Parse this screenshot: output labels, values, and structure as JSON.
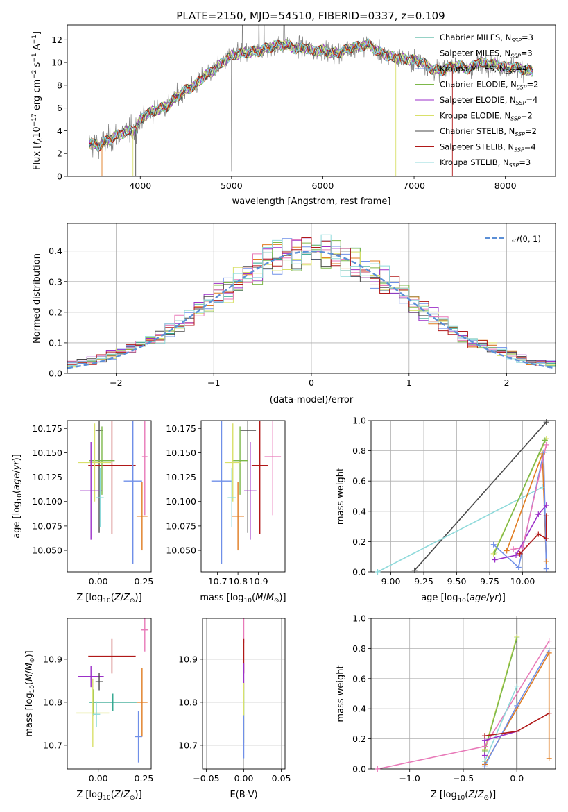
{
  "figure": {
    "title": "PLATE=2150, MJD=54510, FIBERID=0337, z=0.109"
  },
  "colors": {
    "Chabrier MILES": "#2ca58d",
    "Salpeter MILES": "#e07b1f",
    "Kroupa MILES": "#6f8fe8",
    "Chabrier ELODIE": "#7db84a",
    "Salpeter ELODIE": "#9b2fc8",
    "Kroupa ELODIE": "#d9e06a",
    "Chabrier STELIB": "#4a4a4a",
    "Salpeter STELIB": "#b01818",
    "Kroupa STELIB": "#8fdadb",
    "pink": "#e879b8",
    "normal": "#5b8fd6",
    "data": "#808080"
  },
  "chart_data": [
    {
      "id": "spectrum",
      "type": "line",
      "xlabel": "wavelength [Angstrom, rest frame]",
      "ylabel": "Flux [f_λ10^-17 erg cm^-2 s^-1 A^-1]",
      "xlim": [
        3200,
        8550
      ],
      "ylim": [
        0,
        13.3
      ],
      "xticks": [
        4000,
        5000,
        6000,
        7000,
        8000
      ],
      "yticks": [
        0,
        2,
        4,
        6,
        8,
        10,
        12
      ],
      "legend_position": "right",
      "legend": [
        {
          "base": "Chabrier MILES, N",
          "sub": "SSP",
          "tail": "=3"
        },
        {
          "base": "Salpeter MILES, N",
          "sub": "SSP",
          "tail": "=3"
        },
        {
          "base": "Kroupa MILES, N",
          "sub": "SSP",
          "tail": "=4"
        },
        {
          "base": "Chabrier ELODIE, N",
          "sub": "SSP",
          "tail": "=2"
        },
        {
          "base": "Salpeter ELODIE, N",
          "sub": "SSP",
          "tail": "=4"
        },
        {
          "base": "Kroupa ELODIE, N",
          "sub": "SSP",
          "tail": "=2"
        },
        {
          "base": "Chabrier STELIB, N",
          "sub": "SSP",
          "tail": "=2"
        },
        {
          "base": "Salpeter STELIB, N",
          "sub": "SSP",
          "tail": "=4"
        },
        {
          "base": "Kroupa STELIB, N",
          "sub": "SSP",
          "tail": "=3"
        }
      ],
      "continuum": [
        [
          3440,
          2.9
        ],
        [
          3550,
          2.7
        ],
        [
          3650,
          3.2
        ],
        [
          3750,
          3.6
        ],
        [
          3850,
          3.9
        ],
        [
          3950,
          4.1
        ],
        [
          4000,
          5.0
        ],
        [
          4100,
          5.6
        ],
        [
          4200,
          5.9
        ],
        [
          4300,
          6.2
        ],
        [
          4400,
          7.0
        ],
        [
          4500,
          7.6
        ],
        [
          4600,
          8.0
        ],
        [
          4700,
          8.8
        ],
        [
          4800,
          9.3
        ],
        [
          4900,
          10.0
        ],
        [
          5000,
          10.6
        ],
        [
          5100,
          10.8
        ],
        [
          5200,
          10.9
        ],
        [
          5300,
          11.0
        ],
        [
          5400,
          11.3
        ],
        [
          5500,
          11.5
        ],
        [
          5600,
          11.6
        ],
        [
          5700,
          11.2
        ],
        [
          5800,
          11.3
        ],
        [
          5900,
          11.0
        ],
        [
          6000,
          11.1
        ],
        [
          6100,
          10.8
        ],
        [
          6200,
          10.9
        ],
        [
          6300,
          11.3
        ],
        [
          6400,
          11.4
        ],
        [
          6500,
          11.6
        ],
        [
          6600,
          11.0
        ],
        [
          6700,
          10.6
        ],
        [
          6800,
          10.4
        ],
        [
          6900,
          10.3
        ],
        [
          7000,
          10.2
        ],
        [
          7100,
          10.0
        ],
        [
          7200,
          9.4
        ],
        [
          7300,
          9.3
        ],
        [
          7400,
          9.6
        ],
        [
          7500,
          9.7
        ],
        [
          7600,
          9.4
        ],
        [
          7700,
          10.0
        ],
        [
          7800,
          9.9
        ],
        [
          7900,
          9.8
        ],
        [
          8000,
          9.6
        ],
        [
          8100,
          9.6
        ],
        [
          8200,
          9.4
        ],
        [
          8300,
          9.2
        ]
      ]
    },
    {
      "id": "residuals",
      "type": "step-histogram",
      "xlabel": "(data-model)/error",
      "ylabel": "Normed distribution",
      "xlim": [
        -2.5,
        2.5
      ],
      "ylim": [
        0,
        0.49
      ],
      "xticks": [
        -2,
        -1,
        0,
        1,
        2
      ],
      "yticks": [
        0.0,
        0.1,
        0.2,
        0.3,
        0.4
      ],
      "bin_width": 0.1,
      "legend_label": "N(0,1)",
      "legend_position": "top-right",
      "reference_curve": "standard normal density",
      "grid": true
    },
    {
      "id": "age_vs_Z",
      "type": "errorbar",
      "xlabel": "Z [log10(Z/Z_sun)]",
      "ylabel": "age [log10(age/yr)]",
      "xlim": [
        -0.17,
        0.29
      ],
      "ylim": [
        10.028,
        10.183
      ],
      "xticks": [
        0.0,
        0.25
      ],
      "yticks": [
        10.05,
        10.075,
        10.1,
        10.125,
        10.15,
        10.175
      ],
      "points": [
        {
          "series": "Chabrier STELIB",
          "x": 0.005,
          "y": 10.173,
          "xerr": 0.02,
          "yerr": 0.105
        },
        {
          "series": "Salpeter STELIB",
          "x": 0.075,
          "y": 10.137,
          "xerr": 0.13,
          "yerr": 0.07
        },
        {
          "series": "Chabrier ELODIE",
          "x": 0.02,
          "y": 10.142,
          "xerr": 0.07,
          "yerr": 0.035
        },
        {
          "series": "Kroupa ELODIE",
          "x": -0.02,
          "y": 10.14,
          "xerr": 0.09,
          "yerr": 0.04
        },
        {
          "series": "Salpeter ELODIE",
          "x": -0.04,
          "y": 10.111,
          "xerr": 0.06,
          "yerr": 0.05
        },
        {
          "series": "Kroupa MILES",
          "x": 0.19,
          "y": 10.121,
          "xerr": 0.05,
          "yerr": 0.085
        },
        {
          "series": "Kroupa STELIB",
          "x": 0.01,
          "y": 10.104,
          "xerr": 0.02,
          "yerr": 0.03
        },
        {
          "series": "pink",
          "x": 0.255,
          "y": 10.146,
          "xerr": 0.015,
          "yerr": 0.06
        },
        {
          "series": "Salpeter MILES",
          "x": 0.24,
          "y": 10.085,
          "xerr": 0.03,
          "yerr": 0.035
        }
      ]
    },
    {
      "id": "age_vs_mass",
      "type": "errorbar",
      "xlabel": "mass [log10(M/M_sun)]",
      "xlim": [
        10.62,
        11.03
      ],
      "ylim": [
        10.028,
        10.183
      ],
      "xticks": [
        10.7,
        10.8,
        10.9
      ],
      "yticks": [
        10.05,
        10.075,
        10.1,
        10.125,
        10.15,
        10.175
      ],
      "points": [
        {
          "series": "Chabrier STELIB",
          "x": 10.848,
          "y": 10.173,
          "xerr": 0.04,
          "yerr": 0.105
        },
        {
          "series": "Salpeter STELIB",
          "x": 10.907,
          "y": 10.137,
          "xerr": 0.04,
          "yerr": 0.07
        },
        {
          "series": "Chabrier ELODIE",
          "x": 10.81,
          "y": 10.142,
          "xerr": 0.04,
          "yerr": 0.035
        },
        {
          "series": "Kroupa ELODIE",
          "x": 10.775,
          "y": 10.14,
          "xerr": 0.04,
          "yerr": 0.04
        },
        {
          "series": "Salpeter ELODIE",
          "x": 10.86,
          "y": 10.111,
          "xerr": 0.03,
          "yerr": 0.05
        },
        {
          "series": "Kroupa MILES",
          "x": 10.72,
          "y": 10.121,
          "xerr": 0.05,
          "yerr": 0.085
        },
        {
          "series": "Kroupa STELIB",
          "x": 10.77,
          "y": 10.104,
          "xerr": 0.02,
          "yerr": 0.03
        },
        {
          "series": "pink",
          "x": 10.97,
          "y": 10.146,
          "xerr": 0.04,
          "yerr": 0.06
        },
        {
          "series": "Salpeter MILES",
          "x": 10.8,
          "y": 10.085,
          "xerr": 0.03,
          "yerr": 0.035
        }
      ]
    },
    {
      "id": "mass_weight_vs_age",
      "type": "line",
      "xlabel": "age [log10(age/yr)]",
      "ylabel": "mass weight",
      "xlim": [
        8.85,
        10.25
      ],
      "ylim": [
        0.0,
        1.0
      ],
      "xticks": [
        9.0,
        9.25,
        9.5,
        9.75,
        10.0
      ],
      "yticks": [
        0.0,
        0.2,
        0.4,
        0.6,
        0.8,
        1.0
      ],
      "grid": true,
      "series": [
        {
          "name": "Chabrier STELIB",
          "points": [
            [
              9.18,
              0.01
            ],
            [
              10.18,
              0.99
            ]
          ]
        },
        {
          "name": "Kroupa STELIB",
          "points": [
            [
              8.9,
              0.0
            ],
            [
              10.15,
              0.56
            ]
          ]
        },
        {
          "name": "Kroupa ELODIE",
          "points": [
            [
              9.78,
              0.12
            ],
            [
              10.18,
              0.88
            ]
          ]
        },
        {
          "name": "Chabrier ELODIE",
          "points": [
            [
              9.79,
              0.13
            ],
            [
              10.17,
              0.87
            ]
          ]
        },
        {
          "name": "Salpeter MILES",
          "points": [
            [
              9.88,
              0.14
            ],
            [
              10.15,
              0.78
            ],
            [
              10.18,
              0.07
            ]
          ]
        },
        {
          "name": "Kroupa MILES",
          "points": [
            [
              9.78,
              0.18
            ],
            [
              9.97,
              0.03
            ],
            [
              10.16,
              0.79
            ],
            [
              10.18,
              0.02
            ]
          ]
        },
        {
          "name": "Salpeter ELODIE",
          "points": [
            [
              9.79,
              0.08
            ],
            [
              9.95,
              0.11
            ],
            [
              10.12,
              0.38
            ],
            [
              10.18,
              0.44
            ]
          ]
        },
        {
          "name": "Salpeter STELIB",
          "points": [
            [
              9.98,
              0.12
            ],
            [
              10.12,
              0.25
            ],
            [
              10.18,
              0.22
            ],
            [
              10.18,
              0.37
            ]
          ]
        },
        {
          "name": "pink",
          "points": [
            [
              9.93,
              0.15
            ],
            [
              10.0,
              0.16
            ],
            [
              10.18,
              0.84
            ]
          ]
        }
      ]
    },
    {
      "id": "mass_vs_Z",
      "type": "errorbar",
      "xlabel": "Z [log10(Z/Z_sun)]",
      "ylabel": "mass [log10(M/M_sun)]",
      "xlim": [
        -0.17,
        0.29
      ],
      "ylim": [
        10.645,
        10.995
      ],
      "xticks": [
        0.0,
        0.25
      ],
      "yticks": [
        10.7,
        10.8,
        10.9
      ],
      "points": [
        {
          "series": "pink",
          "x": 0.255,
          "y": 10.968,
          "xerr": 0.02,
          "yerr": 0.05
        },
        {
          "series": "Salpeter STELIB",
          "x": 0.075,
          "y": 10.907,
          "xerr": 0.13,
          "yerr": 0.04
        },
        {
          "series": "Salpeter ELODIE",
          "x": -0.04,
          "y": 10.86,
          "xerr": 0.07,
          "yerr": 0.025
        },
        {
          "series": "Chabrier STELIB",
          "x": 0.005,
          "y": 10.848,
          "xerr": 0.02,
          "yerr": 0.02
        },
        {
          "series": "Chabrier ELODIE",
          "x": -0.025,
          "y": 10.8,
          "xerr": 0.02,
          "yerr": 0.03
        },
        {
          "series": "Chabrier MILES",
          "x": 0.08,
          "y": 10.8,
          "xerr": 0.13,
          "yerr": 0.02
        },
        {
          "series": "Salpeter MILES",
          "x": 0.24,
          "y": 10.8,
          "xerr": 0.03,
          "yerr": 0.08
        },
        {
          "series": "Kroupa ELODIE",
          "x": -0.03,
          "y": 10.775,
          "xerr": 0.09,
          "yerr": 0.08
        },
        {
          "series": "Kroupa STELIB",
          "x": -0.01,
          "y": 10.772,
          "xerr": 0.02,
          "yerr": 0.03
        },
        {
          "series": "Kroupa MILES",
          "x": 0.22,
          "y": 10.72,
          "xerr": 0.02,
          "yerr": 0.06
        }
      ]
    },
    {
      "id": "mass_vs_ebv",
      "type": "errorbar",
      "xlabel": "E(B-V)",
      "xlim": [
        -0.055,
        0.055
      ],
      "ylim": [
        10.645,
        10.995
      ],
      "xticks": [
        -0.05,
        0.0,
        0.05
      ],
      "yticks": [
        10.7,
        10.8,
        10.9
      ],
      "points": [
        {
          "series": "pink",
          "x": 0.0,
          "y": 10.968,
          "xerr": 0.0,
          "yerr": 0.03
        },
        {
          "series": "Salpeter STELIB",
          "x": 0.0,
          "y": 10.907,
          "xerr": 0.0,
          "yerr": 0.04
        },
        {
          "series": "Salpeter ELODIE",
          "x": 0.0,
          "y": 10.86,
          "xerr": 0.0,
          "yerr": 0.03
        },
        {
          "series": "Chabrier MILES",
          "x": 0.0,
          "y": 10.8,
          "xerr": 0.0,
          "yerr": 0.03
        },
        {
          "series": "Kroupa ELODIE",
          "x": 0.0,
          "y": 10.775,
          "xerr": 0.0,
          "yerr": 0.07
        },
        {
          "series": "Kroupa MILES",
          "x": 0.0,
          "y": 10.72,
          "xerr": 0.0,
          "yerr": 0.05
        }
      ]
    },
    {
      "id": "mass_weight_vs_Z",
      "type": "line",
      "xlabel": "Z [log10(Z/Z_sun)]",
      "ylabel": "mass weight",
      "xlim": [
        -1.36,
        0.36
      ],
      "ylim": [
        0.0,
        1.0
      ],
      "xticks": [
        -1.0,
        -0.5,
        0.0
      ],
      "yticks": [
        0.0,
        0.2,
        0.4,
        0.6,
        0.8,
        1.0
      ],
      "grid": true,
      "series": [
        {
          "name": "Chabrier STELIB",
          "points": [
            [
              0.0,
              0.0
            ],
            [
              0.0,
              1.0
            ]
          ]
        },
        {
          "name": "Kroupa ELODIE",
          "points": [
            [
              -0.3,
              0.13
            ],
            [
              0.0,
              0.88
            ]
          ]
        },
        {
          "name": "Chabrier ELODIE",
          "points": [
            [
              -0.3,
              0.12
            ],
            [
              0.0,
              0.87
            ]
          ]
        },
        {
          "name": "pink",
          "points": [
            [
              -1.3,
              0.0
            ],
            [
              -0.3,
              0.15
            ],
            [
              0.3,
              0.85
            ]
          ]
        },
        {
          "name": "Kroupa STELIB",
          "points": [
            [
              -0.3,
              0.05
            ],
            [
              0.0,
              0.55
            ]
          ]
        },
        {
          "name": "Salpeter MILES",
          "points": [
            [
              -0.3,
              0.03
            ],
            [
              0.0,
              0.4
            ],
            [
              0.3,
              0.77
            ],
            [
              0.3,
              0.07
            ]
          ]
        },
        {
          "name": "Kroupa MILES",
          "points": [
            [
              -0.3,
              0.02
            ],
            [
              0.0,
              0.42
            ],
            [
              0.3,
              0.79
            ]
          ]
        },
        {
          "name": "Salpeter ELODIE",
          "points": [
            [
              -0.3,
              0.09
            ],
            [
              -0.3,
              0.19
            ],
            [
              0.0,
              0.25
            ]
          ]
        },
        {
          "name": "Salpeter STELIB",
          "points": [
            [
              -0.3,
              0.22
            ],
            [
              0.0,
              0.25
            ],
            [
              0.3,
              0.37
            ]
          ]
        }
      ]
    }
  ]
}
